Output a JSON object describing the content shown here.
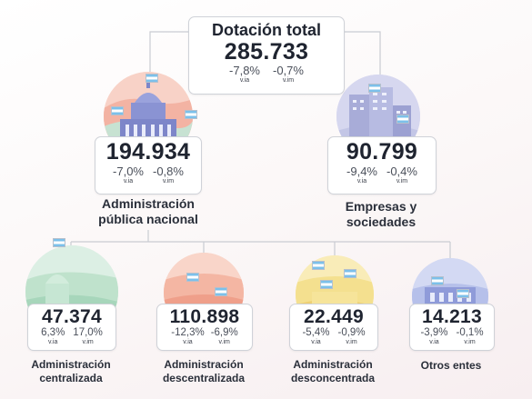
{
  "top": {
    "title": "Dotación total",
    "value": "285.733",
    "stats": [
      {
        "pct": "-7,8%",
        "sub": "v.ia"
      },
      {
        "pct": "-0,7%",
        "sub": "v.im"
      }
    ]
  },
  "apn": {
    "value": "194.934",
    "stats": [
      {
        "pct": "-7,0%",
        "sub": "v.ia"
      },
      {
        "pct": "-0,8%",
        "sub": "v.im"
      }
    ],
    "label_line1": "Administración",
    "label_line2": "pública nacional"
  },
  "emp": {
    "value": "90.799",
    "stats": [
      {
        "pct": "-9,4%",
        "sub": "v.ia"
      },
      {
        "pct": "-0,4%",
        "sub": "v.im"
      }
    ],
    "label_line1": "Empresas y",
    "label_line2": "sociedades"
  },
  "centralizada": {
    "value": "47.374",
    "stats": [
      {
        "pct": "6,3%",
        "sub": "v.ia"
      },
      {
        "pct": "17,0%",
        "sub": "v.im"
      }
    ],
    "label_line1": "Administración",
    "label_line2": "centralizada"
  },
  "descentralizada": {
    "value": "110.898",
    "stats": [
      {
        "pct": "-12,3%",
        "sub": "v.ia"
      },
      {
        "pct": "-6,9%",
        "sub": "v.im"
      }
    ],
    "label_line1": "Administración",
    "label_line2": "descentralizada"
  },
  "desconcentrada": {
    "value": "22.449",
    "stats": [
      {
        "pct": "-5,4%",
        "sub": "v.ia"
      },
      {
        "pct": "-0,9%",
        "sub": "v.im"
      }
    ],
    "label_line1": "Administración",
    "label_line2": "desconcentrada"
  },
  "otros": {
    "value": "14.213",
    "stats": [
      {
        "pct": "-3,9%",
        "sub": "v.ia"
      },
      {
        "pct": "-0,1%",
        "sub": "v.im"
      }
    ],
    "label_line1": "Otros entes"
  },
  "colors": {
    "apn_circle": "#f6c6bb",
    "emp_circle": "#c9cbe8",
    "centralizada_circle": "#cfe8d6",
    "descentralizada_circle": "#f7c7b8",
    "desconcentrada_circle": "#f6e6a6",
    "otros_circle": "#c8d0ef",
    "connector": "#c9ccd2"
  }
}
